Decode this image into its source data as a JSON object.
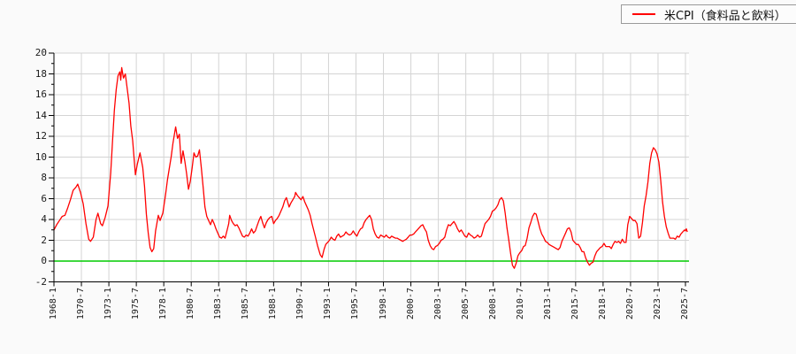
{
  "page": {
    "background": "#fafafa",
    "plot_background": "#ffffff"
  },
  "legend": {
    "label": "米CPI（食料品と飲料）",
    "line_color": "#ff0000",
    "border_color": "#9a9a9a",
    "position": "top-right"
  },
  "chart_data": {
    "type": "line",
    "title": "",
    "series_name": "米CPI（食料品と飲料）",
    "legend_position": "top-right",
    "ylim": [
      -2,
      20
    ],
    "y_ticks": [
      -2,
      0,
      2,
      4,
      6,
      8,
      10,
      12,
      14,
      16,
      18,
      20
    ],
    "y_minor_step": 1,
    "x_start": "1968-01",
    "x_tick_interval_months": 30,
    "x_tick_labels": [
      "1968-1",
      "1970-7",
      "1973-1",
      "1975-7",
      "1978-1",
      "1980-7",
      "1983-1",
      "1985-7",
      "1988-1",
      "1990-7",
      "1993-1",
      "1995-7",
      "1998-1",
      "2000-7",
      "2003-1",
      "2005-7",
      "2008-1",
      "2010-7",
      "2013-1",
      "2015-7",
      "2018-1",
      "2020-7",
      "2023-1",
      "2025-7"
    ],
    "grid": true,
    "grid_color": "#d4d4d4",
    "axis_color": "#000000",
    "line_color": "#ff0000",
    "zero_line_color": "#00cc00",
    "points": [
      [
        "1968-01",
        3.0
      ],
      [
        "1968-04",
        3.5
      ],
      [
        "1968-07",
        3.9
      ],
      [
        "1968-10",
        4.3
      ],
      [
        "1969-01",
        4.4
      ],
      [
        "1969-04",
        5.1
      ],
      [
        "1969-07",
        5.9
      ],
      [
        "1969-10",
        6.8
      ],
      [
        "1970-01",
        7.1
      ],
      [
        "1970-03",
        7.4
      ],
      [
        "1970-06",
        6.6
      ],
      [
        "1970-09",
        5.5
      ],
      [
        "1970-12",
        3.6
      ],
      [
        "1971-03",
        2.1
      ],
      [
        "1971-05",
        1.9
      ],
      [
        "1971-08",
        2.3
      ],
      [
        "1971-11",
        4.0
      ],
      [
        "1972-01",
        4.6
      ],
      [
        "1972-04",
        3.6
      ],
      [
        "1972-06",
        3.4
      ],
      [
        "1972-09",
        4.2
      ],
      [
        "1972-12",
        5.3
      ],
      [
        "1973-03",
        8.5
      ],
      [
        "1973-05",
        11.5
      ],
      [
        "1973-07",
        14.5
      ],
      [
        "1973-09",
        16.5
      ],
      [
        "1973-11",
        17.8
      ],
      [
        "1974-01",
        18.2
      ],
      [
        "1974-02",
        17.4
      ],
      [
        "1974-03",
        18.6
      ],
      [
        "1974-05",
        17.6
      ],
      [
        "1974-07",
        18.0
      ],
      [
        "1974-09",
        16.6
      ],
      [
        "1974-11",
        15.2
      ],
      [
        "1975-01",
        13.0
      ],
      [
        "1975-03",
        11.6
      ],
      [
        "1975-06",
        8.3
      ],
      [
        "1975-08",
        9.3
      ],
      [
        "1975-11",
        10.4
      ],
      [
        "1976-02",
        9.0
      ],
      [
        "1976-04",
        7.2
      ],
      [
        "1976-06",
        4.5
      ],
      [
        "1976-08",
        2.7
      ],
      [
        "1976-10",
        1.3
      ],
      [
        "1976-12",
        0.9
      ],
      [
        "1977-02",
        1.2
      ],
      [
        "1977-04",
        2.9
      ],
      [
        "1977-07",
        4.4
      ],
      [
        "1977-09",
        3.9
      ],
      [
        "1977-12",
        4.6
      ],
      [
        "1978-03",
        6.4
      ],
      [
        "1978-05",
        7.8
      ],
      [
        "1978-07",
        8.9
      ],
      [
        "1978-09",
        10.0
      ],
      [
        "1978-11",
        11.3
      ],
      [
        "1979-01",
        12.4
      ],
      [
        "1979-02",
        12.9
      ],
      [
        "1979-04",
        11.8
      ],
      [
        "1979-06",
        12.2
      ],
      [
        "1979-08",
        9.4
      ],
      [
        "1979-10",
        10.6
      ],
      [
        "1979-12",
        9.6
      ],
      [
        "1980-02",
        8.4
      ],
      [
        "1980-04",
        6.9
      ],
      [
        "1980-06",
        7.7
      ],
      [
        "1980-08",
        9.0
      ],
      [
        "1980-10",
        10.4
      ],
      [
        "1980-12",
        10.0
      ],
      [
        "1981-02",
        10.1
      ],
      [
        "1981-04",
        10.7
      ],
      [
        "1981-06",
        9.0
      ],
      [
        "1981-08",
        7.1
      ],
      [
        "1981-10",
        5.2
      ],
      [
        "1981-12",
        4.3
      ],
      [
        "1982-02",
        3.9
      ],
      [
        "1982-04",
        3.5
      ],
      [
        "1982-06",
        4.0
      ],
      [
        "1982-08",
        3.6
      ],
      [
        "1982-10",
        3.1
      ],
      [
        "1982-12",
        2.7
      ],
      [
        "1983-02",
        2.3
      ],
      [
        "1983-04",
        2.2
      ],
      [
        "1983-06",
        2.4
      ],
      [
        "1983-08",
        2.2
      ],
      [
        "1983-10",
        2.9
      ],
      [
        "1983-12",
        3.6
      ],
      [
        "1984-01",
        4.4
      ],
      [
        "1984-03",
        3.9
      ],
      [
        "1984-05",
        3.6
      ],
      [
        "1984-07",
        3.4
      ],
      [
        "1984-09",
        3.5
      ],
      [
        "1984-11",
        3.2
      ],
      [
        "1985-01",
        2.8
      ],
      [
        "1985-03",
        2.4
      ],
      [
        "1985-05",
        2.3
      ],
      [
        "1985-07",
        2.5
      ],
      [
        "1985-09",
        2.4
      ],
      [
        "1985-11",
        2.7
      ],
      [
        "1986-01",
        3.1
      ],
      [
        "1986-03",
        2.7
      ],
      [
        "1986-05",
        2.9
      ],
      [
        "1986-07",
        3.4
      ],
      [
        "1986-09",
        3.9
      ],
      [
        "1986-11",
        4.3
      ],
      [
        "1987-01",
        3.7
      ],
      [
        "1987-03",
        3.2
      ],
      [
        "1987-05",
        3.7
      ],
      [
        "1987-07",
        4.0
      ],
      [
        "1987-09",
        4.2
      ],
      [
        "1987-11",
        4.3
      ],
      [
        "1988-01",
        3.6
      ],
      [
        "1988-03",
        3.9
      ],
      [
        "1988-05",
        4.1
      ],
      [
        "1988-07",
        4.4
      ],
      [
        "1988-09",
        4.8
      ],
      [
        "1988-11",
        5.2
      ],
      [
        "1989-01",
        5.8
      ],
      [
        "1989-03",
        6.1
      ],
      [
        "1989-06",
        5.2
      ],
      [
        "1989-08",
        5.6
      ],
      [
        "1989-10",
        5.9
      ],
      [
        "1989-12",
        6.2
      ],
      [
        "1990-01",
        6.6
      ],
      [
        "1990-03",
        6.3
      ],
      [
        "1990-05",
        6.1
      ],
      [
        "1990-07",
        5.9
      ],
      [
        "1990-09",
        6.2
      ],
      [
        "1990-11",
        5.7
      ],
      [
        "1991-01",
        5.3
      ],
      [
        "1991-03",
        4.9
      ],
      [
        "1991-05",
        4.4
      ],
      [
        "1991-07",
        3.6
      ],
      [
        "1991-09",
        2.9
      ],
      [
        "1991-11",
        2.2
      ],
      [
        "1992-01",
        1.5
      ],
      [
        "1992-04",
        0.6
      ],
      [
        "1992-06",
        0.35
      ],
      [
        "1992-08",
        1.1
      ],
      [
        "1992-10",
        1.6
      ],
      [
        "1992-12",
        1.8
      ],
      [
        "1993-02",
        2.0
      ],
      [
        "1993-04",
        2.3
      ],
      [
        "1993-06",
        2.1
      ],
      [
        "1993-08",
        2.0
      ],
      [
        "1993-10",
        2.4
      ],
      [
        "1993-12",
        2.6
      ],
      [
        "1994-02",
        2.3
      ],
      [
        "1994-04",
        2.4
      ],
      [
        "1994-06",
        2.5
      ],
      [
        "1994-08",
        2.8
      ],
      [
        "1994-10",
        2.6
      ],
      [
        "1994-12",
        2.5
      ],
      [
        "1995-02",
        2.6
      ],
      [
        "1995-04",
        2.9
      ],
      [
        "1995-06",
        2.6
      ],
      [
        "1995-08",
        2.4
      ],
      [
        "1995-10",
        2.8
      ],
      [
        "1995-12",
        3.1
      ],
      [
        "1996-02",
        3.2
      ],
      [
        "1996-04",
        3.7
      ],
      [
        "1996-06",
        4.0
      ],
      [
        "1996-08",
        4.2
      ],
      [
        "1996-10",
        4.4
      ],
      [
        "1996-12",
        4.0
      ],
      [
        "1997-02",
        3.1
      ],
      [
        "1997-04",
        2.6
      ],
      [
        "1997-06",
        2.3
      ],
      [
        "1997-08",
        2.2
      ],
      [
        "1997-10",
        2.5
      ],
      [
        "1997-12",
        2.4
      ],
      [
        "1998-02",
        2.3
      ],
      [
        "1998-04",
        2.5
      ],
      [
        "1998-06",
        2.3
      ],
      [
        "1998-08",
        2.2
      ],
      [
        "1998-10",
        2.4
      ],
      [
        "1998-12",
        2.3
      ],
      [
        "1999-02",
        2.2
      ],
      [
        "1999-04",
        2.2
      ],
      [
        "1999-06",
        2.1
      ],
      [
        "1999-08",
        2.0
      ],
      [
        "1999-10",
        1.9
      ],
      [
        "1999-12",
        2.0
      ],
      [
        "2000-02",
        2.1
      ],
      [
        "2000-04",
        2.3
      ],
      [
        "2000-06",
        2.5
      ],
      [
        "2000-08",
        2.5
      ],
      [
        "2000-10",
        2.6
      ],
      [
        "2000-12",
        2.8
      ],
      [
        "2001-02",
        3.0
      ],
      [
        "2001-04",
        3.2
      ],
      [
        "2001-06",
        3.4
      ],
      [
        "2001-08",
        3.5
      ],
      [
        "2001-10",
        3.1
      ],
      [
        "2001-12",
        2.8
      ],
      [
        "2002-02",
        2.0
      ],
      [
        "2002-04",
        1.5
      ],
      [
        "2002-06",
        1.2
      ],
      [
        "2002-08",
        1.1
      ],
      [
        "2002-10",
        1.4
      ],
      [
        "2002-12",
        1.5
      ],
      [
        "2003-02",
        1.7
      ],
      [
        "2003-04",
        2.0
      ],
      [
        "2003-06",
        2.1
      ],
      [
        "2003-08",
        2.3
      ],
      [
        "2003-10",
        3.0
      ],
      [
        "2003-12",
        3.5
      ],
      [
        "2004-02",
        3.4
      ],
      [
        "2004-04",
        3.6
      ],
      [
        "2004-06",
        3.8
      ],
      [
        "2004-08",
        3.5
      ],
      [
        "2004-10",
        3.1
      ],
      [
        "2004-12",
        2.8
      ],
      [
        "2005-02",
        3.0
      ],
      [
        "2005-04",
        2.7
      ],
      [
        "2005-06",
        2.4
      ],
      [
        "2005-08",
        2.3
      ],
      [
        "2005-10",
        2.7
      ],
      [
        "2005-12",
        2.5
      ],
      [
        "2006-02",
        2.4
      ],
      [
        "2006-04",
        2.2
      ],
      [
        "2006-06",
        2.3
      ],
      [
        "2006-08",
        2.5
      ],
      [
        "2006-10",
        2.3
      ],
      [
        "2006-12",
        2.4
      ],
      [
        "2007-02",
        3.0
      ],
      [
        "2007-04",
        3.6
      ],
      [
        "2007-06",
        3.8
      ],
      [
        "2007-08",
        4.0
      ],
      [
        "2007-10",
        4.3
      ],
      [
        "2007-12",
        4.8
      ],
      [
        "2008-02",
        4.9
      ],
      [
        "2008-04",
        5.1
      ],
      [
        "2008-06",
        5.4
      ],
      [
        "2008-08",
        5.9
      ],
      [
        "2008-10",
        6.1
      ],
      [
        "2008-12",
        5.8
      ],
      [
        "2009-02",
        4.6
      ],
      [
        "2009-04",
        3.2
      ],
      [
        "2009-06",
        2.0
      ],
      [
        "2009-08",
        0.7
      ],
      [
        "2009-10",
        -0.4
      ],
      [
        "2009-12",
        -0.7
      ],
      [
        "2010-02",
        -0.2
      ],
      [
        "2010-04",
        0.5
      ],
      [
        "2010-06",
        0.8
      ],
      [
        "2010-08",
        1.0
      ],
      [
        "2010-10",
        1.4
      ],
      [
        "2010-12",
        1.5
      ],
      [
        "2011-02",
        2.2
      ],
      [
        "2011-04",
        3.2
      ],
      [
        "2011-06",
        3.7
      ],
      [
        "2011-08",
        4.3
      ],
      [
        "2011-10",
        4.6
      ],
      [
        "2011-12",
        4.5
      ],
      [
        "2012-02",
        3.8
      ],
      [
        "2012-04",
        3.1
      ],
      [
        "2012-06",
        2.6
      ],
      [
        "2012-08",
        2.3
      ],
      [
        "2012-10",
        1.9
      ],
      [
        "2012-12",
        1.8
      ],
      [
        "2013-02",
        1.6
      ],
      [
        "2013-04",
        1.5
      ],
      [
        "2013-06",
        1.4
      ],
      [
        "2013-08",
        1.3
      ],
      [
        "2013-10",
        1.2
      ],
      [
        "2013-12",
        1.1
      ],
      [
        "2014-02",
        1.3
      ],
      [
        "2014-04",
        1.9
      ],
      [
        "2014-06",
        2.3
      ],
      [
        "2014-08",
        2.7
      ],
      [
        "2014-10",
        3.1
      ],
      [
        "2014-12",
        3.2
      ],
      [
        "2015-02",
        2.8
      ],
      [
        "2015-04",
        2.0
      ],
      [
        "2015-06",
        1.8
      ],
      [
        "2015-08",
        1.6
      ],
      [
        "2015-10",
        1.6
      ],
      [
        "2015-12",
        1.3
      ],
      [
        "2016-02",
        0.9
      ],
      [
        "2016-04",
        0.9
      ],
      [
        "2016-06",
        0.3
      ],
      [
        "2016-08",
        -0.1
      ],
      [
        "2016-10",
        -0.4
      ],
      [
        "2016-12",
        -0.2
      ],
      [
        "2017-02",
        -0.1
      ],
      [
        "2017-04",
        0.5
      ],
      [
        "2017-06",
        0.9
      ],
      [
        "2017-08",
        1.1
      ],
      [
        "2017-10",
        1.3
      ],
      [
        "2017-12",
        1.4
      ],
      [
        "2018-02",
        1.7
      ],
      [
        "2018-04",
        1.4
      ],
      [
        "2018-06",
        1.4
      ],
      [
        "2018-08",
        1.4
      ],
      [
        "2018-10",
        1.2
      ],
      [
        "2018-12",
        1.6
      ],
      [
        "2019-02",
        1.9
      ],
      [
        "2019-04",
        1.8
      ],
      [
        "2019-06",
        1.9
      ],
      [
        "2019-08",
        1.7
      ],
      [
        "2019-10",
        2.1
      ],
      [
        "2019-12",
        1.8
      ],
      [
        "2020-02",
        1.8
      ],
      [
        "2020-04",
        3.5
      ],
      [
        "2020-06",
        4.3
      ],
      [
        "2020-08",
        4.1
      ],
      [
        "2020-10",
        3.9
      ],
      [
        "2020-12",
        3.9
      ],
      [
        "2021-02",
        3.6
      ],
      [
        "2021-04",
        2.2
      ],
      [
        "2021-06",
        2.4
      ],
      [
        "2021-08",
        3.7
      ],
      [
        "2021-10",
        5.3
      ],
      [
        "2021-12",
        6.3
      ],
      [
        "2022-02",
        7.6
      ],
      [
        "2022-04",
        9.4
      ],
      [
        "2022-06",
        10.4
      ],
      [
        "2022-08",
        10.9
      ],
      [
        "2022-10",
        10.7
      ],
      [
        "2022-12",
        10.3
      ],
      [
        "2023-02",
        9.5
      ],
      [
        "2023-04",
        7.7
      ],
      [
        "2023-06",
        5.7
      ],
      [
        "2023-08",
        4.3
      ],
      [
        "2023-10",
        3.3
      ],
      [
        "2023-12",
        2.7
      ],
      [
        "2024-02",
        2.2
      ],
      [
        "2024-04",
        2.2
      ],
      [
        "2024-06",
        2.2
      ],
      [
        "2024-08",
        2.1
      ],
      [
        "2024-10",
        2.4
      ],
      [
        "2024-12",
        2.3
      ],
      [
        "2025-02",
        2.6
      ],
      [
        "2025-04",
        2.8
      ],
      [
        "2025-06",
        3.0
      ],
      [
        "2025-07",
        2.9
      ],
      [
        "2025-08",
        3.1
      ],
      [
        "2025-09",
        2.8
      ]
    ]
  }
}
